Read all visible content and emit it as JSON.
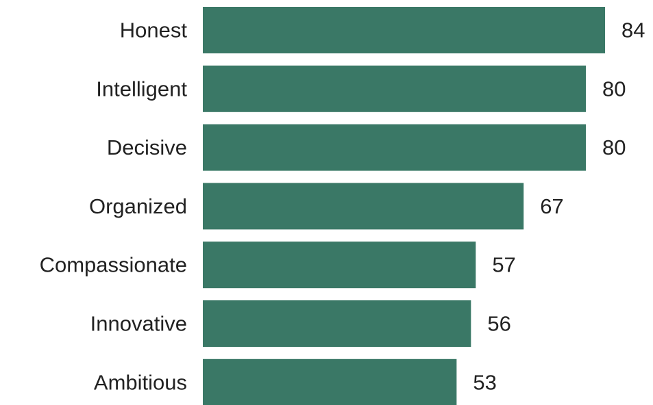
{
  "chart_data": {
    "type": "bar",
    "orientation": "horizontal",
    "categories": [
      "Honest",
      "Intelligent",
      "Decisive",
      "Organized",
      "Compassionate",
      "Innovative",
      "Ambitious"
    ],
    "values": [
      84,
      80,
      80,
      67,
      57,
      56,
      53
    ],
    "data_labels": [
      "84",
      "80",
      "80",
      "67",
      "57",
      "56",
      "53"
    ],
    "title": "",
    "xlabel": "",
    "ylabel": "",
    "xlim": [
      0,
      84
    ],
    "grid": false,
    "legend": "none",
    "bar_color": "#3a7866",
    "text_color": "#222222"
  }
}
